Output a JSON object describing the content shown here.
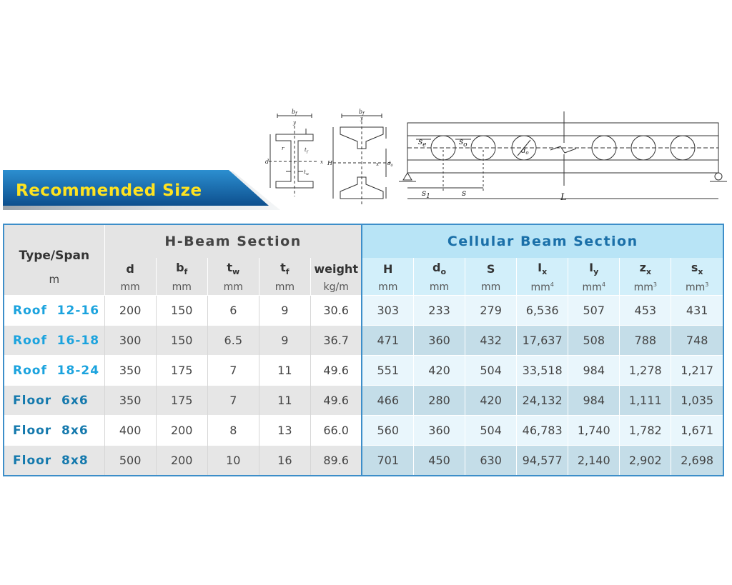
{
  "banner": {
    "title": "Recommended Size"
  },
  "diagrams": {
    "hbeam": {
      "bf": "b",
      "bf_sub": "f",
      "y": "y",
      "x": "x",
      "d": "d",
      "r": "r",
      "tf": "t",
      "tf_sub": "f",
      "tw": "t",
      "tw_sub": "w"
    },
    "cellular_section": {
      "bf": "b",
      "bf_sub": "f",
      "y": "y",
      "x": "x",
      "H": "H",
      "do": "d",
      "do_sub": "0"
    },
    "beam": {
      "se": "s",
      "se_sub": "e",
      "so": "s",
      "so_sub": "o",
      "do": "d",
      "do_sub": "o",
      "s1": "s",
      "s1_sub": "1",
      "s": "s",
      "L": "L"
    }
  },
  "table": {
    "type_header": "Type/Span",
    "type_unit": "m",
    "hbeam_group": "H-Beam Section",
    "cellular_group": "Cellular Beam Section",
    "hbeam_columns": [
      {
        "symbol": "d",
        "sub": "",
        "unit": "mm"
      },
      {
        "symbol": "b",
        "sub": "f",
        "unit": "mm"
      },
      {
        "symbol": "t",
        "sub": "w",
        "unit": "mm"
      },
      {
        "symbol": "t",
        "sub": "f",
        "unit": "mm"
      },
      {
        "symbol": "weight",
        "sub": "",
        "unit": "kg/m"
      }
    ],
    "cellular_columns": [
      {
        "symbol": "H",
        "sub": "",
        "unit": "mm",
        "sup": ""
      },
      {
        "symbol": "d",
        "sub": "o",
        "unit": "mm",
        "sup": ""
      },
      {
        "symbol": "S",
        "sub": "",
        "unit": "mm",
        "sup": ""
      },
      {
        "symbol": "I",
        "sub": "x",
        "unit": "mm",
        "sup": "4"
      },
      {
        "symbol": "I",
        "sub": "y",
        "unit": "mm",
        "sup": "4"
      },
      {
        "symbol": "z",
        "sub": "x",
        "unit": "mm",
        "sup": "3"
      },
      {
        "symbol": "s",
        "sub": "x",
        "unit": "mm",
        "sup": "3"
      }
    ],
    "rows": [
      {
        "label": "Roof  12-16",
        "kind": "roof",
        "hbeam": [
          "200",
          "150",
          "6",
          "9",
          "30.6"
        ],
        "cellular": [
          "303",
          "233",
          "279",
          "6,536",
          "507",
          "453",
          "431"
        ]
      },
      {
        "label": "Roof  16-18",
        "kind": "roof",
        "hbeam": [
          "300",
          "150",
          "6.5",
          "9",
          "36.7"
        ],
        "cellular": [
          "471",
          "360",
          "432",
          "17,637",
          "508",
          "788",
          "748"
        ]
      },
      {
        "label": "Roof  18-24",
        "kind": "roof",
        "hbeam": [
          "350",
          "175",
          "7",
          "11",
          "49.6"
        ],
        "cellular": [
          "551",
          "420",
          "504",
          "33,518",
          "984",
          "1,278",
          "1,217"
        ]
      },
      {
        "label": "Floor  6x6",
        "kind": "floor",
        "hbeam": [
          "350",
          "175",
          "7",
          "11",
          "49.6"
        ],
        "cellular": [
          "466",
          "280",
          "420",
          "24,132",
          "984",
          "1,111",
          "1,035"
        ]
      },
      {
        "label": "Floor  8x6",
        "kind": "floor",
        "hbeam": [
          "400",
          "200",
          "8",
          "13",
          "66.0"
        ],
        "cellular": [
          "560",
          "360",
          "504",
          "46,783",
          "1,740",
          "1,782",
          "1,671"
        ]
      },
      {
        "label": "Floor  8x8",
        "kind": "floor",
        "hbeam": [
          "500",
          "200",
          "10",
          "16",
          "89.6"
        ],
        "cellular": [
          "701",
          "450",
          "630",
          "94,577",
          "2,140",
          "2,902",
          "2,698"
        ]
      }
    ]
  }
}
